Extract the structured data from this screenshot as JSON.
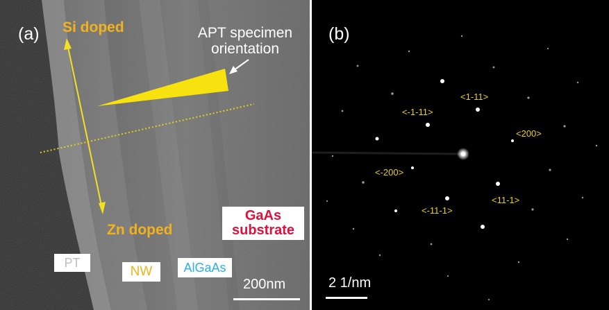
{
  "panel_a": {
    "letter": "(a)",
    "si_doped": "Si doped",
    "zn_doped": "Zn doped",
    "apt_line1": "APT specimen",
    "apt_line2": "orientation",
    "gaas_line1": "GaAs",
    "gaas_line2": "substrate",
    "pt": "PT",
    "nw": "NW",
    "algaas": "AlGaAs",
    "scale_bar": "200nm",
    "colors": {
      "doping_labels": "#f2b21c",
      "arrow": "#f4e020",
      "gaas_text": "#e0103c",
      "pt_text": "#bdbdbd",
      "nw_text": "#f2b21c",
      "algaas_text": "#2ab0e6"
    }
  },
  "panel_b": {
    "letter": "(b)",
    "scale_bar": "2 1/nm",
    "spot_labels": [
      "<1-11>",
      "<-1-11>",
      "<200>",
      "<-200>",
      "<11-1>",
      "<-11-1>"
    ],
    "colors": {
      "spot_labels": "#e8d21a"
    }
  }
}
